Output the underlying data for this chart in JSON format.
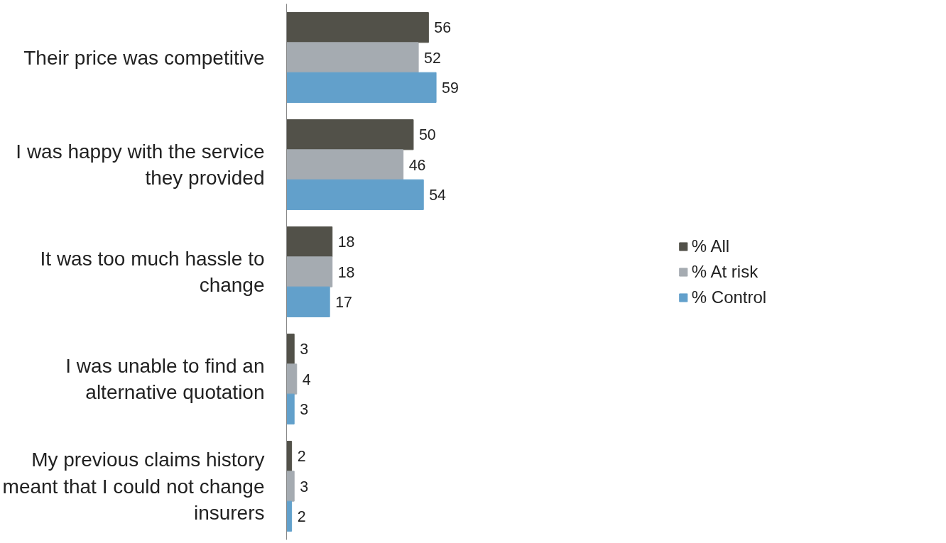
{
  "chart_data": {
    "type": "bar",
    "orientation": "horizontal",
    "categories": [
      "Their price was competitive",
      "I was happy with the service they provided",
      "It was too much hassle to change",
      "I was unable to find an alternative quotation",
      "My previous claims history meant that I could not change insurers"
    ],
    "series": [
      {
        "name": "% All",
        "color": "#525149",
        "values": [
          56,
          50,
          18,
          3,
          2
        ]
      },
      {
        "name": "% At risk",
        "color": "#a5abb1",
        "values": [
          52,
          46,
          18,
          4,
          3
        ]
      },
      {
        "name": "% Control",
        "color": "#62a0cb",
        "values": [
          59,
          54,
          17,
          3,
          2
        ]
      }
    ],
    "data_labels": true,
    "legend": "right",
    "grid": false
  }
}
